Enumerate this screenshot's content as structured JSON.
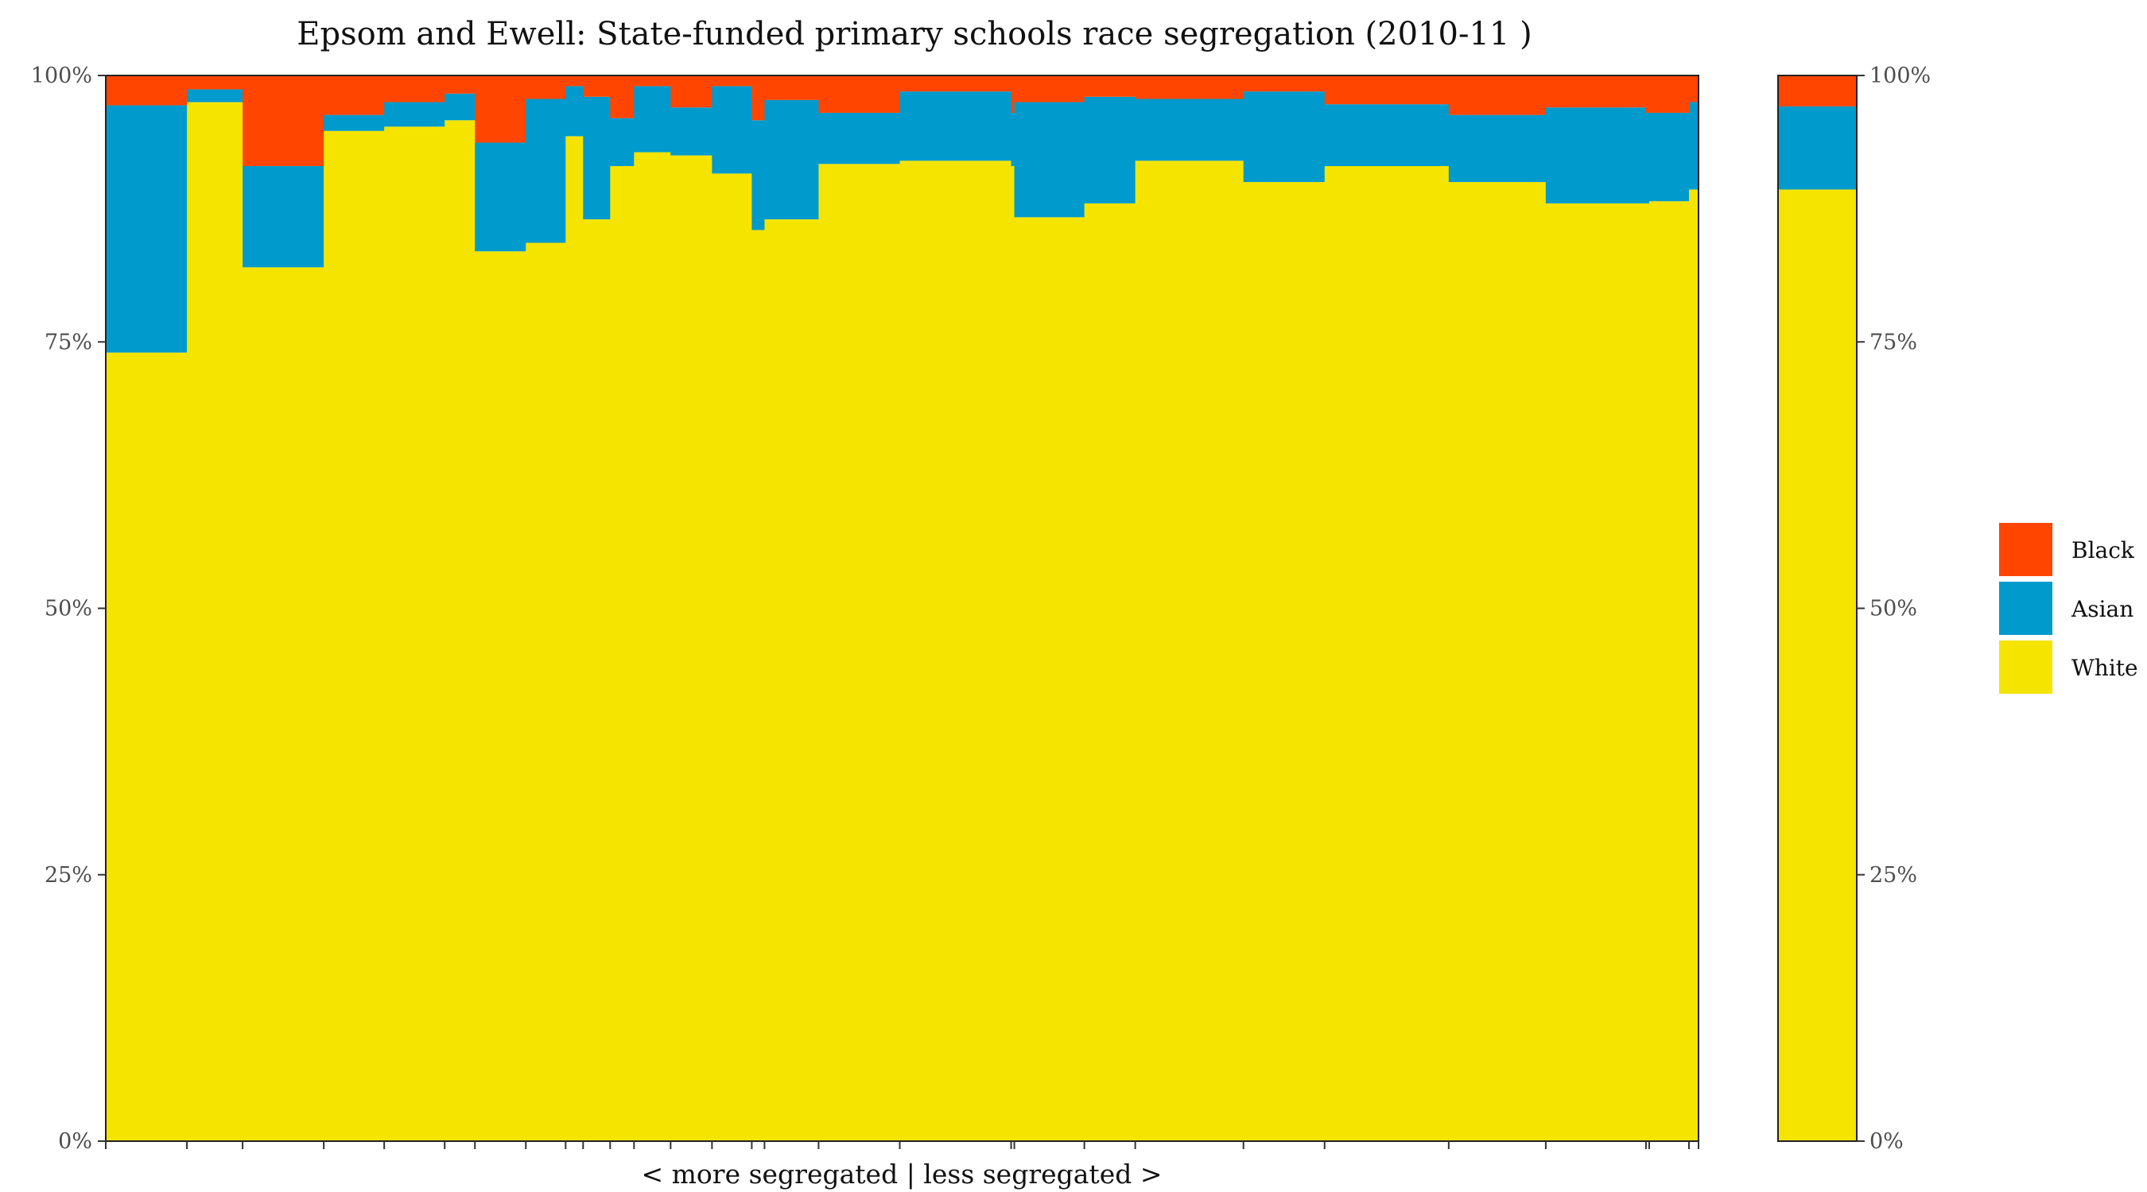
{
  "chart_data": {
    "type": "bar",
    "title": "Epsom and Ewell: State-funded primary schools race segregation (2010-11 )",
    "xlabel": "< more segregated | less segregated >",
    "ylabel": "",
    "ylim": [
      0,
      100
    ],
    "yticks": [
      "0%",
      "25%",
      "50%",
      "75%",
      "100%"
    ],
    "legend": {
      "position": "right",
      "entries": [
        {
          "name": "Black",
          "color": "#FF4500"
        },
        {
          "name": "Asian",
          "color": "#009ACD"
        },
        {
          "name": "White",
          "color": "#F5E400"
        }
      ]
    },
    "schools": [
      {
        "width": 5.1,
        "white": 74.0,
        "asian": 23.2,
        "black": 2.8
      },
      {
        "width": 3.5,
        "white": 97.5,
        "asian": 1.2,
        "black": 1.3
      },
      {
        "width": 5.1,
        "white": 82.0,
        "asian": 9.5,
        "black": 8.5
      },
      {
        "width": 3.8,
        "white": 94.8,
        "asian": 1.5,
        "black": 3.7
      },
      {
        "width": 3.8,
        "white": 95.2,
        "asian": 2.3,
        "black": 2.5
      },
      {
        "width": 1.9,
        "white": 95.8,
        "asian": 2.5,
        "black": 1.7
      },
      {
        "width": 3.2,
        "white": 83.5,
        "asian": 10.2,
        "black": 6.3
      },
      {
        "width": 2.5,
        "white": 84.3,
        "asian": 13.5,
        "black": 2.2
      },
      {
        "width": 1.1,
        "white": 94.3,
        "asian": 4.7,
        "black": 1.0
      },
      {
        "width": 1.7,
        "white": 86.5,
        "asian": 11.5,
        "black": 2.0
      },
      {
        "width": 1.5,
        "white": 91.5,
        "asian": 4.5,
        "black": 4.0
      },
      {
        "width": 2.3,
        "white": 92.8,
        "asian": 6.2,
        "black": 1.0
      },
      {
        "width": 2.6,
        "white": 92.5,
        "asian": 4.5,
        "black": 3.0
      },
      {
        "width": 2.5,
        "white": 90.8,
        "asian": 8.2,
        "black": 1.0
      },
      {
        "width": 0.8,
        "white": 85.5,
        "asian": 10.3,
        "black": 4.2
      },
      {
        "width": 3.4,
        "white": 86.5,
        "asian": 11.2,
        "black": 2.3
      },
      {
        "width": 5.1,
        "white": 91.7,
        "asian": 4.8,
        "black": 3.5
      },
      {
        "width": 7.0,
        "white": 92.0,
        "asian": 6.5,
        "black": 1.5
      },
      {
        "width": 0.2,
        "white": 91.5,
        "asian": 5.0,
        "black": 3.5
      },
      {
        "width": 4.4,
        "white": 86.7,
        "asian": 10.8,
        "black": 2.5
      },
      {
        "width": 3.2,
        "white": 88.0,
        "asian": 10.0,
        "black": 2.0
      },
      {
        "width": 6.8,
        "white": 92.0,
        "asian": 5.8,
        "black": 2.2
      },
      {
        "width": 5.1,
        "white": 90.0,
        "asian": 8.5,
        "black": 1.5
      },
      {
        "width": 7.8,
        "white": 91.5,
        "asian": 5.8,
        "black": 2.7
      },
      {
        "width": 6.1,
        "white": 90.0,
        "asian": 6.3,
        "black": 3.7
      },
      {
        "width": 6.3,
        "white": 88.0,
        "asian": 9.0,
        "black": 3.0
      },
      {
        "width": 0.2,
        "white": 88.0,
        "asian": 8.5,
        "black": 3.5
      },
      {
        "width": 2.5,
        "white": 88.2,
        "asian": 8.3,
        "black": 3.5
      },
      {
        "width": 0.6,
        "white": 89.3,
        "asian": 8.2,
        "black": 2.5
      }
    ],
    "overall": {
      "white": 89.3,
      "asian": 7.8,
      "black": 2.9
    }
  }
}
